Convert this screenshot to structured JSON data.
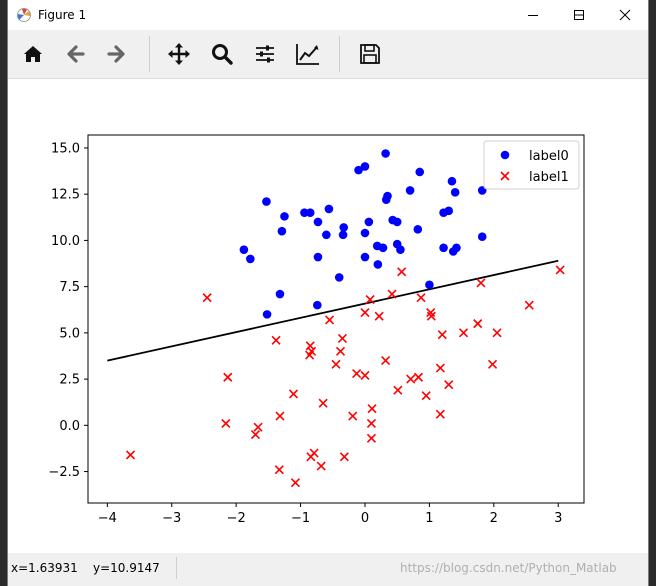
{
  "window": {
    "title": "Figure 1"
  },
  "toolbar": {
    "buttons": [
      {
        "name": "home-icon"
      },
      {
        "name": "back-icon"
      },
      {
        "name": "forward-icon"
      },
      {
        "name": "pan-icon"
      },
      {
        "name": "zoom-icon"
      },
      {
        "name": "configure-subplots-icon"
      },
      {
        "name": "edit-axis-icon"
      },
      {
        "name": "save-icon"
      }
    ]
  },
  "status": {
    "x": "x=1.63931",
    "y": "y=10.9147",
    "watermark": "https://blog.csdn.net/Python_Matlab"
  },
  "chart_data": {
    "type": "scatter",
    "xlim": [
      -4.3,
      3.4
    ],
    "ylim": [
      -4.2,
      15.7
    ],
    "xticks": [
      -4,
      -3,
      -2,
      -1,
      0,
      1,
      2,
      3
    ],
    "yticks": [
      -2.5,
      0.0,
      2.5,
      5.0,
      7.5,
      10.0,
      12.5,
      15.0
    ],
    "xtick_labels": [
      "−4",
      "−3",
      "−2",
      "−1",
      "0",
      "1",
      "2",
      "3"
    ],
    "ytick_labels": [
      "−2.5",
      "0.0",
      "2.5",
      "5.0",
      "7.5",
      "10.0",
      "12.5",
      "15.0"
    ],
    "legend_position": "upper right",
    "series": [
      {
        "name": "label0",
        "marker": "circle",
        "color": "#0000ff",
        "points": [
          [
            0.32,
            14.7
          ],
          [
            0.0,
            14.0
          ],
          [
            -0.1,
            13.8
          ],
          [
            0.85,
            13.7
          ],
          [
            1.35,
            13.2
          ],
          [
            1.4,
            12.6
          ],
          [
            0.7,
            12.7
          ],
          [
            1.82,
            12.7
          ],
          [
            0.35,
            12.4
          ],
          [
            0.33,
            12.2
          ],
          [
            -1.53,
            12.1
          ],
          [
            -1.25,
            11.3
          ],
          [
            -0.56,
            11.7
          ],
          [
            1.22,
            11.5
          ],
          [
            1.3,
            11.6
          ],
          [
            -0.94,
            11.5
          ],
          [
            -0.85,
            11.5
          ],
          [
            0.43,
            11.1
          ],
          [
            0.5,
            11.0
          ],
          [
            0.06,
            11.0
          ],
          [
            -0.73,
            11.0
          ],
          [
            0.82,
            10.6
          ],
          [
            -0.33,
            10.7
          ],
          [
            -1.29,
            10.5
          ],
          [
            -0.6,
            10.3
          ],
          [
            -0.34,
            10.3
          ],
          [
            -0.0,
            10.4
          ],
          [
            1.82,
            10.2
          ],
          [
            0.5,
            9.8
          ],
          [
            0.19,
            9.7
          ],
          [
            0.28,
            9.6
          ],
          [
            0.55,
            9.5
          ],
          [
            1.22,
            9.6
          ],
          [
            1.42,
            9.6
          ],
          [
            1.37,
            9.4
          ],
          [
            -1.88,
            9.5
          ],
          [
            -1.78,
            9.0
          ],
          [
            -0.73,
            9.1
          ],
          [
            0.0,
            9.1
          ],
          [
            0.2,
            8.7
          ],
          [
            -0.4,
            8.0
          ],
          [
            1.0,
            7.6
          ],
          [
            -1.32,
            7.1
          ],
          [
            -0.74,
            6.5
          ],
          [
            -1.52,
            6.0
          ]
        ]
      },
      {
        "name": "label1",
        "marker": "x",
        "color": "#ff0000",
        "points": [
          [
            3.03,
            8.4
          ],
          [
            0.57,
            8.3
          ],
          [
            1.8,
            7.7
          ],
          [
            -2.45,
            6.9
          ],
          [
            0.42,
            7.1
          ],
          [
            0.87,
            6.9
          ],
          [
            2.55,
            6.5
          ],
          [
            0.08,
            6.8
          ],
          [
            1.02,
            6.1
          ],
          [
            1.03,
            5.9
          ],
          [
            0.22,
            5.9
          ],
          [
            -0.0,
            6.1
          ],
          [
            -0.55,
            5.7
          ],
          [
            1.75,
            5.5
          ],
          [
            1.53,
            5.0
          ],
          [
            2.05,
            5.0
          ],
          [
            1.2,
            4.9
          ],
          [
            -1.38,
            4.6
          ],
          [
            -0.35,
            4.7
          ],
          [
            -0.85,
            4.3
          ],
          [
            -0.83,
            4.0
          ],
          [
            -0.38,
            4.0
          ],
          [
            -0.86,
            3.8
          ],
          [
            0.32,
            3.5
          ],
          [
            -0.45,
            3.3
          ],
          [
            -0.13,
            2.8
          ],
          [
            0.0,
            2.7
          ],
          [
            0.71,
            2.5
          ],
          [
            0.83,
            2.6
          ],
          [
            1.17,
            3.1
          ],
          [
            1.98,
            3.3
          ],
          [
            -2.13,
            2.6
          ],
          [
            1.3,
            2.2
          ],
          [
            0.51,
            1.9
          ],
          [
            0.95,
            1.6
          ],
          [
            -1.11,
            1.7
          ],
          [
            -0.65,
            1.2
          ],
          [
            0.11,
            0.9
          ],
          [
            1.17,
            0.6
          ],
          [
            -1.32,
            0.5
          ],
          [
            -0.19,
            0.5
          ],
          [
            -2.16,
            0.1
          ],
          [
            -1.66,
            -0.1
          ],
          [
            0.1,
            0.1
          ],
          [
            -1.7,
            -0.5
          ],
          [
            0.1,
            -0.7
          ],
          [
            -3.64,
            -1.6
          ],
          [
            -0.79,
            -1.5
          ],
          [
            -0.84,
            -1.7
          ],
          [
            -0.32,
            -1.7
          ],
          [
            -0.68,
            -2.2
          ],
          [
            -1.33,
            -2.4
          ],
          [
            -1.08,
            -3.1
          ]
        ]
      }
    ],
    "line": {
      "color": "#000000",
      "x": [
        -4.0,
        3.0
      ],
      "y": [
        3.5,
        8.9
      ]
    }
  }
}
